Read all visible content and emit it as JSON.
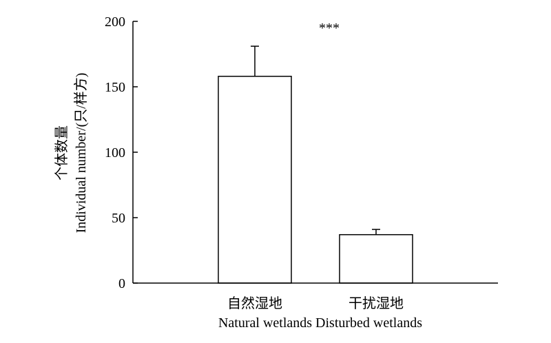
{
  "chart_data": {
    "type": "bar",
    "categories": [
      "自然湿地",
      "干扰湿地"
    ],
    "categories_en": "Natural wetlands Disturbed wetlands",
    "values": [
      158,
      37
    ],
    "errors": [
      23,
      4
    ],
    "ylabel_zh": "个体数量",
    "ylabel_en": "Individual number/(只/样方)",
    "ylim": [
      0,
      200
    ],
    "yticks": [
      0,
      50,
      100,
      150,
      200
    ],
    "annotation": "***",
    "grid": false,
    "colors": {
      "bar_fill": "#ffffff",
      "bar_stroke": "#000000",
      "axis": "#000000"
    }
  }
}
